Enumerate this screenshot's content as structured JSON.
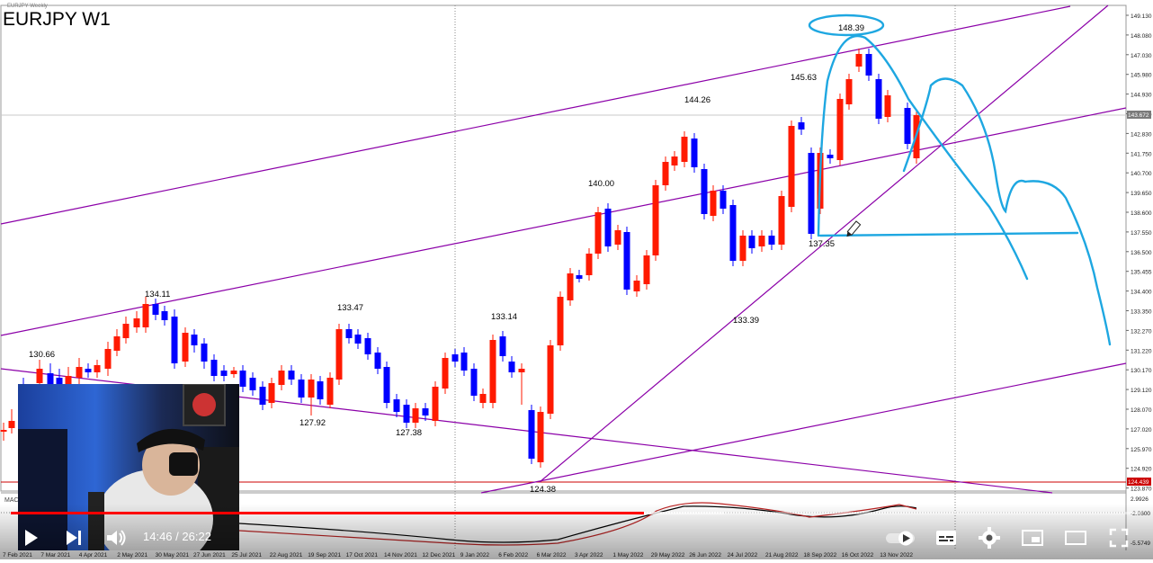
{
  "chart": {
    "title": "EURJPY W1",
    "subtitle": "EURJPY Weekly",
    "current_price": "143.672",
    "support_price": "124.439",
    "macd_label": "MACD",
    "price_scale": [
      "149.130",
      "148.080",
      "147.030",
      "145.980",
      "144.930",
      "143.880",
      "142.830",
      "141.750",
      "140.700",
      "139.650",
      "138.600",
      "137.550",
      "136.500",
      "135.455",
      "134.400",
      "133.350",
      "132.270",
      "131.220",
      "130.170",
      "129.120",
      "128.070",
      "127.020",
      "125.970",
      "124.920",
      "123.870"
    ],
    "macd_scale": [
      "2.9926",
      "-2.0600",
      "-5.5749"
    ],
    "date_labels": [
      "7 Feb 2021",
      "7 Mar 2021",
      "4 Apr 2021",
      "2 May 2021",
      "30 May 2021",
      "27 Jun 2021",
      "25 Jul 2021",
      "22 Aug 2021",
      "19 Sep 2021",
      "17 Oct 2021",
      "14 Nov 2021",
      "12 Dec 2021",
      "9 Jan 2022",
      "6 Feb 2022",
      "6 Mar 2022",
      "3 Apr 2022",
      "1 May 2022",
      "29 May 2022",
      "26 Jun 2022",
      "24 Jul 2022",
      "21 Aug 2022",
      "18 Sep 2022",
      "16 Oct 2022",
      "13 Nov 2022"
    ],
    "price_labels": [
      "130.66",
      "134.11",
      "127.92",
      "133.47",
      "127.38",
      "133.14",
      "124.38",
      "140.00",
      "144.26",
      "133.39",
      "145.63",
      "148.39",
      "137.35"
    ],
    "colors": {
      "bull": "#ff1a00",
      "bear": "#0000ff",
      "trendline": "#8b00a8",
      "drawing": "#1ea7e1",
      "support": "#cc0000"
    }
  },
  "video": {
    "current_time": "14:46",
    "separator": " / ",
    "duration": "26:22",
    "progress": 0.56,
    "buffered": 0.63,
    "icons": [
      "play-icon",
      "next-icon",
      "volume-icon",
      "autoplay-toggle",
      "subtitles-icon",
      "settings-icon",
      "miniplayer-icon",
      "theater-icon",
      "fullscreen-icon"
    ]
  }
}
